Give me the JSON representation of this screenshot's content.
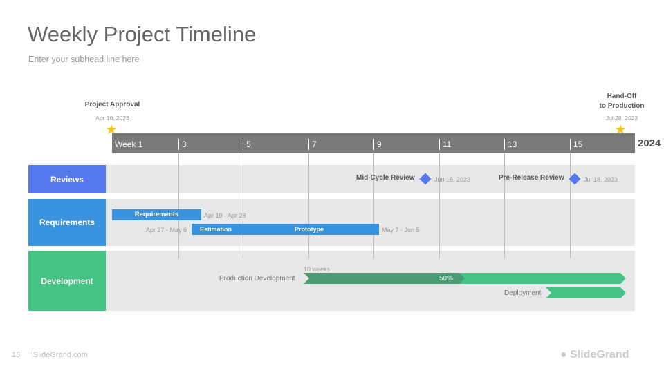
{
  "header": {
    "title": "Weekly Project Timeline",
    "subhead": "Enter your subhead line here"
  },
  "milestones": [
    {
      "label": "Project Approval",
      "date": "Apr 10, 2023",
      "icon": "star-icon"
    },
    {
      "label_line1": "Hand-Off",
      "label_line2": "to Production",
      "date": "Jul 28, 2023",
      "icon": "star-icon"
    }
  ],
  "axis": {
    "ticks": [
      "Week 1",
      "3",
      "5",
      "7",
      "9",
      "11",
      "13",
      "15"
    ],
    "year": "2024",
    "color": "#7a7a7a"
  },
  "rows": [
    {
      "label": "Reviews",
      "color": "#5578ec"
    },
    {
      "label": "Requirements",
      "color": "#3a93df"
    },
    {
      "label": "Development",
      "color": "#45c486"
    }
  ],
  "reviews": [
    {
      "label": "Mid-Cycle Review",
      "date": "Jun 16, 2023"
    },
    {
      "label": "Pre-Release Review",
      "date": "Jul 18, 2023"
    }
  ],
  "requirements": {
    "req_bar": {
      "label": "Requirements",
      "dates": "Apr 10 - Apr 28"
    },
    "est_dates": "Apr 27 - May 6",
    "estimation": "Estimation",
    "prototype": "Prototype",
    "proto_dates": "May 7 - Jun 5"
  },
  "development": {
    "duration": "10 weeks",
    "prod_label": "Production Development",
    "progress": "50%",
    "deploy_label": "Deployment",
    "dark_color": "#4a9a72",
    "light_color": "#45c486"
  },
  "footer": {
    "page": "15",
    "site": "| SlideGrand.com",
    "logo": "SlideGrand"
  }
}
